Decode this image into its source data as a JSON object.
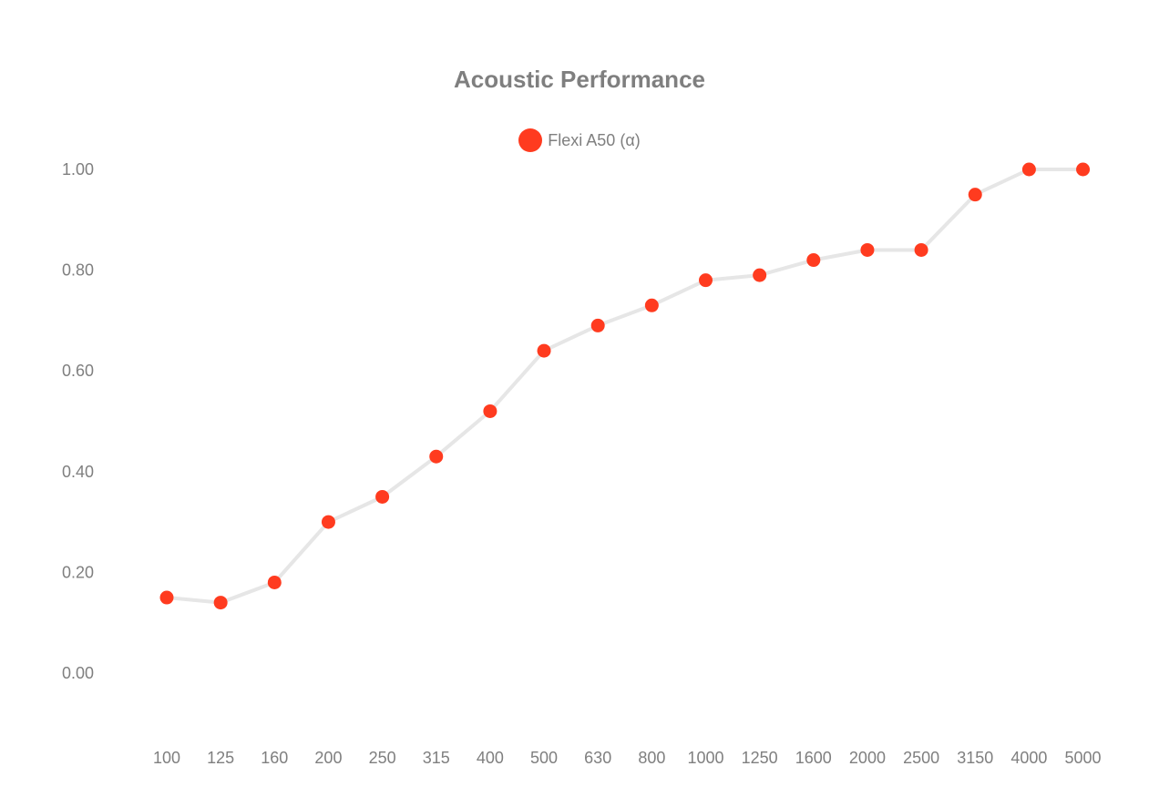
{
  "chart_data": {
    "type": "line",
    "title": "Acoustic Performance",
    "xlabel": "",
    "ylabel": "",
    "categories": [
      "100",
      "125",
      "160",
      "200",
      "250",
      "315",
      "400",
      "500",
      "630",
      "800",
      "1000",
      "1250",
      "1600",
      "2000",
      "2500",
      "3150",
      "4000",
      "5000"
    ],
    "series": [
      {
        "name": "Flexi A50 (α)",
        "values": [
          0.15,
          0.14,
          0.18,
          0.3,
          0.35,
          0.43,
          0.52,
          0.64,
          0.69,
          0.73,
          0.78,
          0.79,
          0.82,
          0.84,
          0.84,
          0.95,
          1.0,
          1.0
        ],
        "point_color": "#ff3b1f",
        "line_color": "#e6e6e6"
      }
    ],
    "y_ticks": [
      "0.00",
      "0.20",
      "0.40",
      "0.60",
      "0.80",
      "1.00"
    ],
    "ylim": [
      -0.1,
      1.1
    ],
    "grid": false,
    "legend_position": "top-center"
  }
}
